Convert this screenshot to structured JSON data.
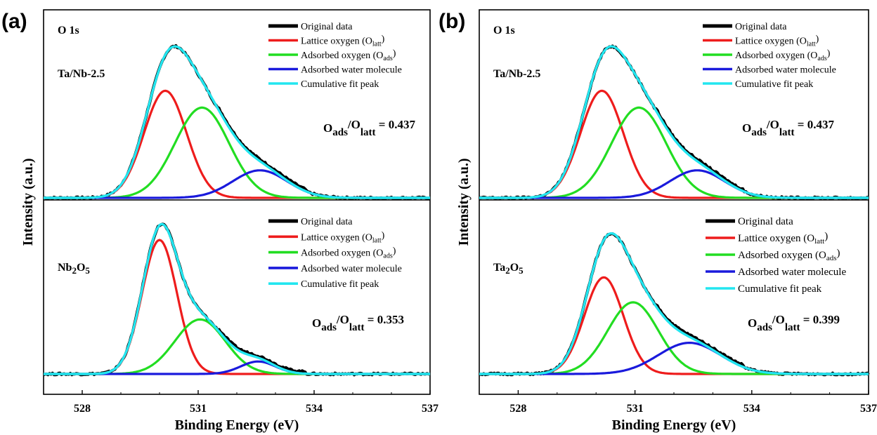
{
  "figure": {
    "colors": {
      "original": "#000000",
      "lattice": "#ee1c1c",
      "adsorbed": "#22dd22",
      "water": "#1a1adc",
      "cumulative": "#22e6f0",
      "frame": "#000000"
    }
  },
  "chart_data": [
    {
      "type": "line",
      "panel_label": "(a)",
      "xlabel": "Binding Energy (eV)",
      "ylabel": "Intensity (a.u.)",
      "xlim": [
        527,
        537
      ],
      "xticks": [
        528,
        531,
        534,
        537
      ],
      "xtick_labels": [
        "528",
        "531",
        "534",
        "537"
      ],
      "grid": false,
      "subplots": [
        {
          "title": "O 1s",
          "sample_label": "Ta/Nb-2.5",
          "legend": {
            "placement": "top-right",
            "entries": [
              {
                "key": "original",
                "text": "Original data"
              },
              {
                "key": "lattice",
                "text": "Lattice oxygen (O",
                "sub": "latt",
                "tail": ")"
              },
              {
                "key": "adsorbed",
                "text": "Adsorbed oxygen (O",
                "sub": "ads",
                "tail": ")"
              },
              {
                "key": "water",
                "text": "Adsorbed water molecule"
              },
              {
                "key": "cumulative",
                "text": "Cumulative fit peak"
              }
            ]
          },
          "ratio": {
            "num": "ads",
            "den": "latt",
            "value": "0.437"
          },
          "peaks": [
            {
              "key": "lattice",
              "center": 530.15,
              "amplitude": 0.7,
              "sigma": 0.55
            },
            {
              "key": "adsorbed",
              "center": 531.1,
              "amplitude": 0.59,
              "sigma": 0.7
            },
            {
              "key": "water",
              "center": 532.6,
              "amplitude": 0.18,
              "sigma": 0.7
            }
          ]
        },
        {
          "title": "",
          "sample_label_parts": [
            {
              "t": "Nb"
            },
            {
              "t": "2",
              "sub": true
            },
            {
              "t": "O"
            },
            {
              "t": "5",
              "sub": true
            }
          ],
          "legend": {
            "placement": "top-right",
            "entries": [
              {
                "key": "original",
                "text": "Original data"
              },
              {
                "key": "lattice",
                "text": "Lattice oxygen (O",
                "sub": "latt",
                "tail": ")"
              },
              {
                "key": "adsorbed",
                "text": "Adsorbed oxygen (O",
                "sub": "ads",
                "tail": ")"
              },
              {
                "key": "water",
                "text": "Adsorbed water molecule"
              },
              {
                "key": "cumulative",
                "text": "Cumulative fit peak"
              }
            ]
          },
          "ratio": {
            "num": "ads",
            "den": "latt",
            "value": "0.353"
          },
          "peaks": [
            {
              "key": "lattice",
              "center": 530.0,
              "amplitude": 0.86,
              "sigma": 0.45
            },
            {
              "key": "adsorbed",
              "center": 531.05,
              "amplitude": 0.35,
              "sigma": 0.65
            },
            {
              "key": "water",
              "center": 532.55,
              "amplitude": 0.08,
              "sigma": 0.45
            }
          ]
        }
      ]
    },
    {
      "type": "line",
      "panel_label": "(b)",
      "xlabel": "Binding Energy (eV)",
      "ylabel": "Intensity (a.u.)",
      "xlim": [
        527,
        537
      ],
      "xticks": [
        528,
        531,
        534,
        537
      ],
      "xtick_labels": [
        "528",
        "531",
        "534",
        "537"
      ],
      "grid": false,
      "subplots": [
        {
          "title": "O 1s",
          "sample_label": "Ta/Nb-2.5",
          "legend": {
            "placement": "top-right",
            "entries": [
              {
                "key": "original",
                "text": "Original data"
              },
              {
                "key": "lattice",
                "text": "Lattice oxygen (O",
                "sub": "latt",
                "tail": ")"
              },
              {
                "key": "adsorbed",
                "text": "Adsorbed oxygen (O",
                "sub": "ads",
                "tail": ")"
              },
              {
                "key": "water",
                "text": "Adsorbed water molecule"
              },
              {
                "key": "cumulative",
                "text": "Cumulative fit peak"
              }
            ]
          },
          "ratio": {
            "num": "ads",
            "den": "latt",
            "value": "0.437"
          },
          "peaks": [
            {
              "key": "lattice",
              "center": 530.15,
              "amplitude": 0.7,
              "sigma": 0.55
            },
            {
              "key": "adsorbed",
              "center": 531.1,
              "amplitude": 0.59,
              "sigma": 0.7
            },
            {
              "key": "water",
              "center": 532.6,
              "amplitude": 0.18,
              "sigma": 0.7
            }
          ]
        },
        {
          "title": "",
          "sample_label_parts": [
            {
              "t": "Ta"
            },
            {
              "t": "2",
              "sub": true
            },
            {
              "t": "O"
            },
            {
              "t": "5",
              "sub": true
            }
          ],
          "legend": {
            "placement": "top-right",
            "entries": [
              {
                "key": "original",
                "text": "Original data"
              },
              {
                "key": "lattice",
                "text": "Lattice oxygen (O",
                "sub": "latt",
                "tail": ")"
              },
              {
                "key": "adsorbed",
                "text": "Adsorbed oxygen (O",
                "sub": "ads",
                "tail": ")"
              },
              {
                "key": "water",
                "text": "Adsorbed water molecule"
              },
              {
                "key": "cumulative",
                "text": "Cumulative fit peak"
              }
            ]
          },
          "ratio": {
            "num": "ads",
            "den": "latt",
            "value": "0.399"
          },
          "peaks": [
            {
              "key": "lattice",
              "center": 530.2,
              "amplitude": 0.62,
              "sigma": 0.5
            },
            {
              "key": "adsorbed",
              "center": 530.95,
              "amplitude": 0.46,
              "sigma": 0.65
            },
            {
              "key": "water",
              "center": 532.4,
              "amplitude": 0.2,
              "sigma": 0.8
            }
          ]
        }
      ]
    }
  ]
}
